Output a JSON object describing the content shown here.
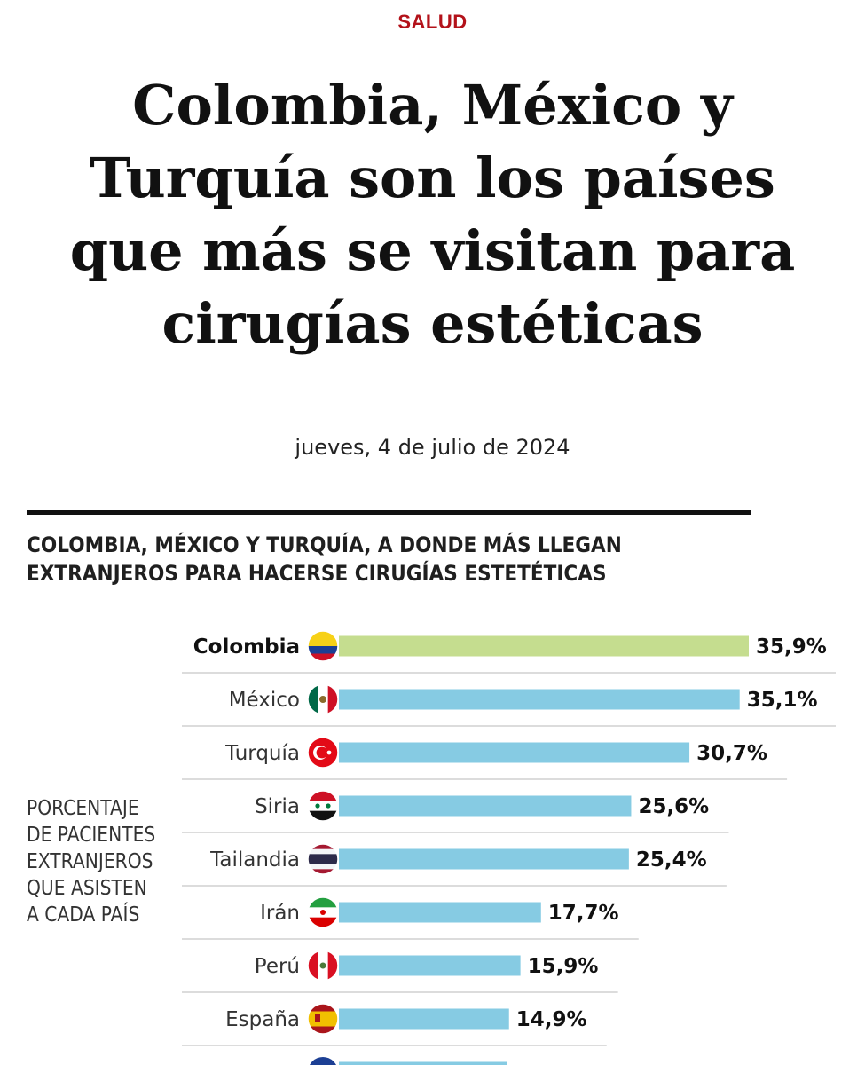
{
  "section": "SALUD",
  "headline": "Colombia, México y Turquía son los países que más se visitan para cirugías estéticas",
  "date": "jueves, 4 de julio de 2024",
  "chart_data": {
    "type": "bar",
    "orientation": "horizontal",
    "title": "COLOMBIA, MÉXICO Y TURQUÍA, A DONDE MÁS LLEGAN\nEXTRANJEROS PARA HACERSE CIRUGÍAS ESTETÉTICAS",
    "side_label": "PORCENTAJE\nDE PACIENTES\nEXTRANJEROS\nQUE ASISTEN\nA CADA PAÍS",
    "categories": [
      "Colombia",
      "México",
      "Turquía",
      "Siria",
      "Tailandia",
      "Irán",
      "Perú",
      "España"
    ],
    "values": [
      35.9,
      35.1,
      30.7,
      25.6,
      25.4,
      17.7,
      15.9,
      14.9
    ],
    "value_labels": [
      "35,9%",
      "35,1%",
      "30,7%",
      "25,6%",
      "25,4%",
      "17,7%",
      "15,9%",
      "14,9%"
    ],
    "unit": "%",
    "highlight": "Colombia",
    "colors": {
      "highlight": "#c5dd8f",
      "default": "#86cbe3",
      "divider": "#d0d0d0"
    },
    "flag_icons": [
      "colombia-flag-icon",
      "mexico-flag-icon",
      "turkey-flag-icon",
      "syria-flag-icon",
      "thailand-flag-icon",
      "iran-flag-icon",
      "peru-flag-icon",
      "spain-flag-icon"
    ]
  }
}
